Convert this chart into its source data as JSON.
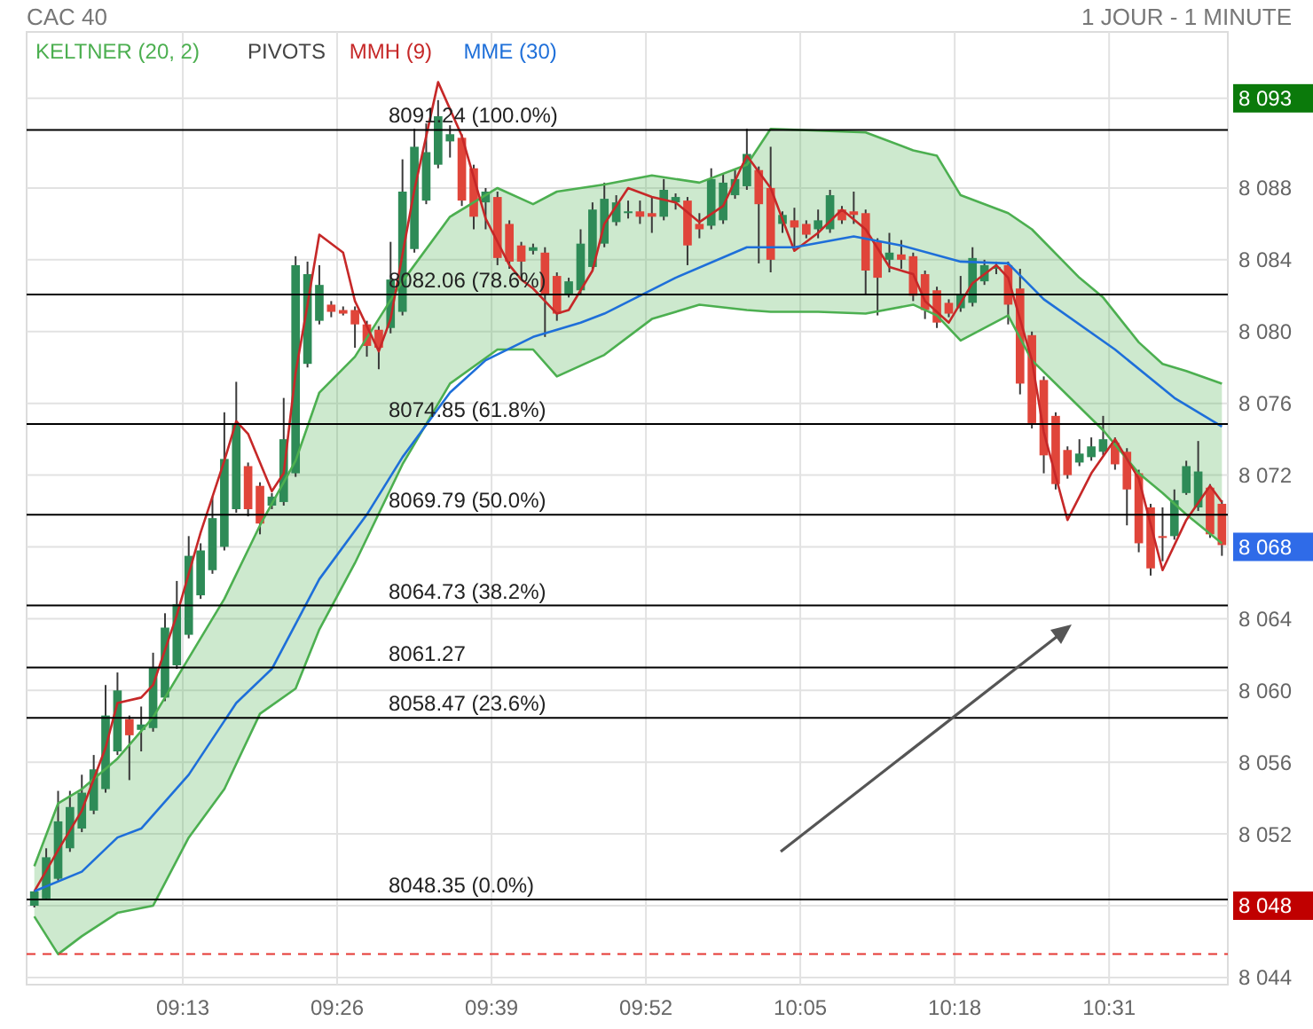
{
  "chart_data": {
    "type": "candlestick",
    "title": "CAC 40",
    "subtitle": "1 JOUR - 1 MINUTE",
    "xlim": [
      8.9975,
      10.6833
    ],
    "ylim": [
      8043.6,
      8096.7
    ],
    "xticks": [
      {
        "value": 9.2167,
        "label": "09:13"
      },
      {
        "value": 9.4333,
        "label": "09:26"
      },
      {
        "value": 9.65,
        "label": "09:39"
      },
      {
        "value": 9.8667,
        "label": "09:52"
      },
      {
        "value": 10.0833,
        "label": "10:05"
      },
      {
        "value": 10.3,
        "label": "10:18"
      },
      {
        "value": 10.5167,
        "label": "10:31"
      }
    ],
    "yticks": [
      {
        "value": 8044,
        "label": "8 044"
      },
      {
        "value": 8048,
        "label": "8 048"
      },
      {
        "value": 8052,
        "label": "8 052"
      },
      {
        "value": 8056,
        "label": "8 056"
      },
      {
        "value": 8060,
        "label": "8 060"
      },
      {
        "value": 8064,
        "label": "8 064"
      },
      {
        "value": 8068,
        "label": "8 068"
      },
      {
        "value": 8072,
        "label": "8 072"
      },
      {
        "value": 8076,
        "label": "8 076"
      },
      {
        "value": 8080,
        "label": "8 080"
      },
      {
        "value": 8084,
        "label": "8 084"
      },
      {
        "value": 8088,
        "label": "8 088"
      },
      {
        "value": 8093,
        "label": "8 093"
      }
    ],
    "grid": true,
    "legend": "top left",
    "series": [
      {
        "type": "line",
        "name": "KELTNER (20, 2)",
        "color": "#4caf50",
        "values": [
          8050.2,
          8053.7,
          8054.5,
          8056.2,
          8058.5,
          8061.8,
          8065.1,
          8069.2,
          8072.8,
          8076.6,
          8078.6,
          8082.8,
          8086.4,
          8088.0,
          8087.1,
          8087.8,
          8088.2,
          8088.7,
          8088.3,
          8089.3,
          8091.3,
          8091.2,
          8091.1,
          8090.1,
          8089.8,
          8087.6,
          8086.6,
          8085.7,
          8083.0,
          8081.9,
          8079.4,
          8078.2,
          8077.8,
          8077.1
        ],
        "x": [
          9.0083,
          9.0417,
          9.075,
          9.125,
          9.175,
          9.225,
          9.275,
          9.325,
          9.375,
          9.4083,
          9.4583,
          9.525,
          9.5917,
          9.6583,
          9.7083,
          9.7417,
          9.8083,
          9.875,
          9.9417,
          10.0083,
          10.0417,
          10.1083,
          10.175,
          10.2417,
          10.275,
          10.3083,
          10.375,
          10.4083,
          10.475,
          10.5083,
          10.5583,
          10.5917,
          10.625,
          10.675
        ],
        "upper": [
          8050.2,
          8053.7,
          8054.5,
          8056.2,
          8058.5,
          8061.8,
          8065.1,
          8069.2,
          8072.8,
          8076.6,
          8078.6,
          8082.8,
          8086.4,
          8088.0,
          8087.1,
          8087.8,
          8088.2,
          8088.7,
          8088.3,
          8089.3,
          8091.3,
          8091.2,
          8091.1,
          8090.1,
          8089.8,
          8087.6,
          8086.6,
          8085.7,
          8083.0,
          8081.9,
          8079.4,
          8078.2,
          8077.8,
          8077.1
        ],
        "lower": [
          8047.4,
          8045.3,
          8046.3,
          8047.6,
          8048.0,
          8051.8,
          8054.5,
          8058.7,
          8060.1,
          8063.4,
          8067.1,
          8072.6,
          8077.1,
          8079.0,
          8079.0,
          8077.5,
          8078.7,
          8080.7,
          8081.5,
          8081.2,
          8081.1,
          8081.1,
          8081.0,
          8081.5,
          8080.9,
          8079.5,
          8080.9,
          8078.4,
          8075.8,
          8074.5,
          8072.1,
          8071.0,
          8069.8,
          8068.2
        ]
      },
      {
        "type": "line",
        "color": "#4caf50",
        "x": [
          9.0083,
          9.0417,
          9.075,
          9.125,
          9.175,
          9.225,
          9.275,
          9.325,
          9.375,
          9.4083,
          9.4583,
          9.525,
          9.5917,
          9.6583,
          9.7083,
          9.7417,
          9.8083,
          9.875,
          9.9417,
          10.0083,
          10.0417,
          10.1083,
          10.175,
          10.2417,
          10.275,
          10.3083,
          10.375,
          10.4083,
          10.475,
          10.5083,
          10.5583,
          10.5917,
          10.625,
          10.675
        ],
        "values": [
          8047.4,
          8045.3,
          8046.3,
          8047.6,
          8048.0,
          8051.8,
          8054.5,
          8058.7,
          8060.1,
          8063.4,
          8067.1,
          8072.6,
          8077.1,
          8079.0,
          8079.0,
          8077.5,
          8078.7,
          8080.7,
          8081.5,
          8081.2,
          8081.1,
          8081.1,
          8081.0,
          8081.5,
          8080.9,
          8079.5,
          8080.9,
          8078.4,
          8075.8,
          8074.5,
          8072.1,
          8071.0,
          8069.8,
          8068.2
        ]
      },
      {
        "type": "line",
        "name": "MMH (9)",
        "color": "#c62828",
        "x": [
          9.0083,
          9.0417,
          9.075,
          9.1083,
          9.125,
          9.1583,
          9.175,
          9.2083,
          9.2417,
          9.275,
          9.2917,
          9.3083,
          9.3417,
          9.3583,
          9.375,
          9.3917,
          9.4083,
          9.4417,
          9.4583,
          9.4917,
          9.5083,
          9.5417,
          9.575,
          9.6083,
          9.6417,
          9.675,
          9.6917,
          9.7083,
          9.7417,
          9.7583,
          9.7917,
          9.8083,
          9.8417,
          9.875,
          9.9083,
          9.9417,
          9.975,
          10.0083,
          10.0417,
          10.075,
          10.1083,
          10.1417,
          10.175,
          10.2083,
          10.2417,
          10.2583,
          10.2917,
          10.325,
          10.3583,
          10.375,
          10.4083,
          10.425,
          10.4583,
          10.4917,
          10.525,
          10.5583,
          10.5917,
          10.625,
          10.6583,
          10.675
        ],
        "values": [
          8048.8,
          8051.1,
          8053.3,
          8056.8,
          8059.3,
          8059.6,
          8060.3,
          8064.2,
          8068.8,
          8072.8,
          8075.0,
          8074.3,
          8071.1,
          8072.1,
          8077.7,
          8081.5,
          8085.4,
          8084.4,
          8081.7,
          8078.9,
          8080.7,
          8087.9,
          8093.9,
          8090.9,
          8086.3,
          8083.7,
          8082.9,
          8082.4,
          8081.0,
          8081.2,
          8083.4,
          8086.0,
          8088.0,
          8087.5,
          8087.2,
          8086.1,
          8087.0,
          8089.8,
          8088.0,
          8084.5,
          8085.5,
          8086.8,
          8085.7,
          8083.6,
          8083.2,
          8081.7,
          8080.5,
          8082.7,
          8083.7,
          8083.0,
          8078.4,
          8074.4,
          8069.5,
          8072.1,
          8074.0,
          8071.8,
          8066.7,
          8069.5,
          8071.4,
          8070.5
        ]
      },
      {
        "type": "line",
        "name": "MME (30)",
        "color": "#1e6fd9",
        "x": [
          9.0083,
          9.075,
          9.125,
          9.1583,
          9.225,
          9.2917,
          9.3417,
          9.4083,
          9.475,
          9.525,
          9.5583,
          9.5917,
          9.6417,
          9.7083,
          9.775,
          9.8083,
          9.9083,
          10.0083,
          10.075,
          10.1583,
          10.225,
          10.3083,
          10.375,
          10.425,
          10.525,
          10.6083,
          10.675
        ],
        "values": [
          8048.8,
          8049.9,
          8051.8,
          8052.3,
          8055.3,
          8059.3,
          8061.2,
          8066.2,
          8069.8,
          8073.0,
          8074.8,
          8076.6,
          8078.4,
          8079.7,
          8080.5,
          8081.0,
          8083.0,
          8084.7,
          8084.7,
          8085.3,
          8084.8,
          8083.9,
          8083.8,
          8081.8,
          8079.0,
          8076.3,
          8074.7
        ]
      },
      {
        "x": [
          9.0083,
          9.025,
          9.0417,
          9.0583,
          9.075,
          9.0917,
          9.1083,
          9.125,
          9.1417,
          9.1583,
          9.175,
          9.1917,
          9.2083,
          9.225,
          9.2417,
          9.2583,
          9.275,
          9.2917,
          9.3083,
          9.325,
          9.3417,
          9.3583,
          9.375,
          9.3917,
          9.4083,
          9.425,
          9.4417,
          9.4583,
          9.475,
          9.4917,
          9.5083,
          9.525,
          9.5417,
          9.5583,
          9.575,
          9.5917,
          9.6083,
          9.625,
          9.6417,
          9.6583,
          9.675,
          9.6917,
          9.7083,
          9.725,
          9.7417,
          9.7583,
          9.775,
          9.7917,
          9.8083,
          9.825,
          9.8417,
          9.8583,
          9.875,
          9.8917,
          9.9083,
          9.925,
          9.9417,
          9.9583,
          9.975,
          9.9917,
          10.0083,
          10.025,
          10.0417,
          10.0583,
          10.075,
          10.0917,
          10.1083,
          10.125,
          10.1417,
          10.1583,
          10.175,
          10.1917,
          10.2083,
          10.225,
          10.2417,
          10.2583,
          10.275,
          10.2917,
          10.3083,
          10.325,
          10.3417,
          10.3583,
          10.375,
          10.3917,
          10.4083,
          10.425,
          10.4417,
          10.4583,
          10.475,
          10.4917,
          10.5083,
          10.525,
          10.5417,
          10.5583,
          10.575,
          10.5917,
          10.6083,
          10.625,
          10.6417,
          10.6583,
          10.675
        ],
        "ohlc": [
          [
            8048.0,
            8048.8,
            8047.9,
            8048.8
          ],
          [
            8048.4,
            8051.2,
            8048.3,
            8050.7
          ],
          [
            8049.5,
            8054.4,
            8049.4,
            8052.7
          ],
          [
            8051.2,
            8054.4,
            8051.0,
            8053.5
          ],
          [
            8052.3,
            8055.3,
            8052.1,
            8054.3
          ],
          [
            8053.3,
            8056.4,
            8053.1,
            8055.6
          ],
          [
            8054.5,
            8060.3,
            8054.3,
            8058.6
          ],
          [
            8056.6,
            8061.0,
            8056.4,
            8060.0
          ],
          [
            8058.4,
            8058.6,
            8055.0,
            8057.5
          ],
          [
            8057.8,
            8059.1,
            8056.6,
            8058.1
          ],
          [
            8057.9,
            8062.1,
            8057.7,
            8061.3
          ],
          [
            8059.6,
            8064.3,
            8059.4,
            8063.5
          ],
          [
            8061.4,
            8066.1,
            8061.2,
            8064.8
          ],
          [
            8063.1,
            8068.6,
            8062.9,
            8067.5
          ],
          [
            8065.3,
            8068.2,
            8065.1,
            8067.8
          ],
          [
            8066.7,
            8070.8,
            8066.5,
            8069.6
          ],
          [
            8068.0,
            8075.5,
            8067.8,
            8072.9
          ],
          [
            8070.1,
            8077.2,
            8069.9,
            8074.8
          ],
          [
            8072.5,
            8072.7,
            8069.7,
            8070.1
          ],
          [
            8071.4,
            8071.6,
            8068.7,
            8069.3
          ],
          [
            8070.3,
            8071.0,
            8070.1,
            8070.8
          ],
          [
            8070.5,
            8076.3,
            8070.3,
            8074.0
          ],
          [
            8072.1,
            8084.2,
            8071.9,
            8083.7
          ],
          [
            8078.2,
            8083.9,
            8078.0,
            8083.2
          ],
          [
            8080.6,
            8083.7,
            8080.4,
            8082.6
          ],
          [
            8081.5,
            8081.7,
            8080.8,
            8081.1
          ],
          [
            8081.2,
            8081.4,
            8080.9,
            8081.0
          ],
          [
            8081.2,
            8081.4,
            8079.1,
            8080.4
          ],
          [
            8080.4,
            8080.6,
            8078.6,
            8079.2
          ],
          [
            8080.1,
            8080.3,
            8077.9,
            8079.1
          ],
          [
            8080.2,
            8085.0,
            8079.9,
            8082.9
          ],
          [
            8081.1,
            8089.6,
            8080.9,
            8087.8
          ],
          [
            8084.6,
            8091.3,
            8084.4,
            8090.3
          ],
          [
            8087.3,
            8091.6,
            8087.1,
            8090.0
          ],
          [
            8089.3,
            8092.9,
            8089.1,
            8092.0
          ],
          [
            8090.6,
            8091.5,
            8089.7,
            8091.0
          ],
          [
            8090.8,
            8091.0,
            8087.0,
            8087.3
          ],
          [
            8089.1,
            8089.3,
            8085.7,
            8086.4
          ],
          [
            8087.2,
            8088.0,
            8085.7,
            8087.8
          ],
          [
            8087.5,
            8087.8,
            8083.7,
            8084.1
          ],
          [
            8086.0,
            8086.2,
            8083.5,
            8083.9
          ],
          [
            8084.8,
            8085.0,
            8083.0,
            8083.9
          ],
          [
            8084.5,
            8084.9,
            8084.3,
            8084.7
          ],
          [
            8084.4,
            8084.7,
            8079.7,
            8082.1
          ],
          [
            8083.1,
            8083.3,
            8080.6,
            8081.0
          ],
          [
            8082.1,
            8083.0,
            8081.9,
            8082.8
          ],
          [
            8082.3,
            8085.7,
            8082.1,
            8084.9
          ],
          [
            8083.6,
            8087.2,
            8083.4,
            8086.8
          ],
          [
            8084.9,
            8088.3,
            8084.7,
            8087.4
          ],
          [
            8086.1,
            8087.6,
            8085.9,
            8087.2
          ],
          [
            8086.6,
            8087.3,
            8086.3,
            8086.7
          ],
          [
            8086.7,
            8087.3,
            8086.0,
            8086.4
          ],
          [
            8086.6,
            8087.5,
            8085.5,
            8086.4
          ],
          [
            8086.4,
            8088.5,
            8086.2,
            8087.9
          ],
          [
            8087.2,
            8087.7,
            8086.8,
            8087.5
          ],
          [
            8087.3,
            8087.5,
            8083.7,
            8084.8
          ],
          [
            8086.0,
            8086.6,
            8085.2,
            8085.7
          ],
          [
            8085.9,
            8089.1,
            8085.7,
            8088.5
          ],
          [
            8086.2,
            8088.8,
            8086.0,
            8088.3
          ],
          [
            8087.6,
            8089.0,
            8087.4,
            8088.5
          ],
          [
            8088.1,
            8091.3,
            8087.9,
            8089.9
          ],
          [
            8089.0,
            8089.2,
            8083.8,
            8087.1
          ],
          [
            8088.0,
            8090.3,
            8083.3,
            8084.0
          ],
          [
            8086.0,
            8086.7,
            8085.5,
            8086.5
          ],
          [
            8086.2,
            8086.9,
            8084.5,
            8085.8
          ],
          [
            8086.0,
            8086.2,
            8085.2,
            8085.4
          ],
          [
            8085.7,
            8086.8,
            8085.2,
            8086.2
          ],
          [
            8085.7,
            8087.9,
            8085.5,
            8087.6
          ],
          [
            8086.8,
            8087.0,
            8086.0,
            8086.2
          ],
          [
            8086.7,
            8087.8,
            8086.0,
            8086.5
          ],
          [
            8086.6,
            8086.8,
            8082.1,
            8083.4
          ],
          [
            8085.0,
            8085.2,
            8080.9,
            8083.0
          ],
          [
            8084.0,
            8085.5,
            8083.3,
            8084.4
          ],
          [
            8084.3,
            8085.1,
            8083.5,
            8084.0
          ],
          [
            8084.2,
            8084.4,
            8081.7,
            8082.0
          ],
          [
            8083.2,
            8083.4,
            8080.7,
            8081.2
          ],
          [
            8082.3,
            8082.5,
            8080.2,
            8080.5
          ],
          [
            8081.6,
            8081.8,
            8080.8,
            8081.0
          ],
          [
            8081.3,
            8083.1,
            8081.1,
            8082.1
          ],
          [
            8081.6,
            8084.7,
            8081.4,
            8084.1
          ],
          [
            8082.8,
            8084.0,
            8082.6,
            8083.7
          ],
          [
            8083.5,
            8083.9,
            8083.2,
            8083.6
          ],
          [
            8083.7,
            8083.9,
            8080.4,
            8081.5
          ],
          [
            8082.4,
            8083.5,
            8076.5,
            8077.1
          ],
          [
            8079.8,
            8080.0,
            8074.6,
            8074.9
          ],
          [
            8077.3,
            8077.5,
            8072.1,
            8073.1
          ],
          [
            8075.3,
            8075.5,
            8071.2,
            8071.5
          ],
          [
            8073.4,
            8073.6,
            8071.8,
            8072.0
          ],
          [
            8072.7,
            8074.0,
            8072.5,
            8073.2
          ],
          [
            8073.0,
            8074.1,
            8072.8,
            8073.6
          ],
          [
            8073.3,
            8075.3,
            8073.1,
            8074.0
          ],
          [
            8073.8,
            8074.1,
            8072.3,
            8072.6
          ],
          [
            8073.3,
            8073.5,
            8069.2,
            8071.2
          ],
          [
            8072.1,
            8072.3,
            8067.7,
            8068.2
          ],
          [
            8070.2,
            8070.4,
            8066.4,
            8066.8
          ],
          [
            8068.6,
            8070.2,
            8067.2,
            8068.5
          ],
          [
            8068.6,
            8071.2,
            8068.4,
            8070.6
          ],
          [
            8071.0,
            8072.8,
            8070.9,
            8072.5
          ],
          [
            8070.2,
            8073.9,
            8070.0,
            8072.2
          ],
          [
            8071.3,
            8071.5,
            8068.5,
            8068.7
          ],
          [
            8070.4,
            8070.6,
            8067.5,
            8068.1
          ]
        ],
        "colors": [
          "#2e8b57",
          "#2e8b57",
          "#2e8b57",
          "#2e8b57",
          "#2e8b57",
          "#2e8b57",
          "#2e8b57",
          "#2e8b57",
          "#e0453a",
          "#2e8b57",
          "#2e8b57",
          "#2e8b57",
          "#2e8b57",
          "#2e8b57",
          "#2e8b57",
          "#2e8b57",
          "#2e8b57",
          "#2e8b57",
          "#e0453a",
          "#e0453a",
          "#2e8b57",
          "#2e8b57",
          "#2e8b57",
          "#2e8b57",
          "#2e8b57",
          "#e0453a",
          "#e0453a",
          "#e0453a",
          "#e0453a",
          "#e0453a",
          "#2e8b57",
          "#2e8b57",
          "#2e8b57",
          "#2e8b57",
          "#2e8b57",
          "#2e8b57",
          "#e0453a",
          "#e0453a",
          "#2e8b57",
          "#e0453a",
          "#e0453a",
          "#e0453a",
          "#2e8b57",
          "#e0453a",
          "#e0453a",
          "#2e8b57",
          "#2e8b57",
          "#2e8b57",
          "#2e8b57",
          "#2e8b57",
          "#2e8b57",
          "#e0453a",
          "#e0453a",
          "#2e8b57",
          "#2e8b57",
          "#e0453a",
          "#e0453a",
          "#2e8b57",
          "#2e8b57",
          "#2e8b57",
          "#2e8b57",
          "#e0453a",
          "#e0453a",
          "#2e8b57",
          "#e0453a",
          "#e0453a",
          "#2e8b57",
          "#2e8b57",
          "#e0453a",
          "#e0453a",
          "#e0453a",
          "#e0453a",
          "#2e8b57",
          "#e0453a",
          "#e0453a",
          "#e0453a",
          "#e0453a",
          "#e0453a",
          "#2e8b57",
          "#2e8b57",
          "#2e8b57",
          "#2e8b57",
          "#e0453a",
          "#e0453a",
          "#e0453a",
          "#e0453a",
          "#e0453a",
          "#e0453a",
          "#2e8b57",
          "#2e8b57",
          "#2e8b57",
          "#e0453a",
          "#e0453a",
          "#e0453a",
          "#e0453a",
          "#e0453a",
          "#2e8b57",
          "#2e8b57",
          "#2e8b57",
          "#e0453a",
          "#e0453a"
        ]
      }
    ],
    "ref_lines": [
      {
        "axis": "y",
        "value": 8091.24,
        "label": "8091.24  (100.0%)",
        "color": "#000000"
      },
      {
        "axis": "y",
        "value": 8082.06,
        "label": "8082.06  (78.6%)",
        "color": "#000000"
      },
      {
        "axis": "y",
        "value": 8074.85,
        "label": "8074.85  (61.8%)",
        "color": "#000000"
      },
      {
        "axis": "y",
        "value": 8069.79,
        "label": "8069.79  (50.0%)",
        "color": "#000000"
      },
      {
        "axis": "y",
        "value": 8064.73,
        "label": "8064.73  (38.2%)",
        "color": "#000000"
      },
      {
        "axis": "y",
        "value": 8061.27,
        "label": "8061.27",
        "color": "#000000"
      },
      {
        "axis": "y",
        "value": 8058.47,
        "label": "8058.47  (23.6%)",
        "color": "#000000"
      },
      {
        "axis": "y",
        "value": 8048.35,
        "label": "8048.35  (0.0%)",
        "color": "#000000"
      },
      {
        "axis": "y",
        "value": 8045.3,
        "label": null,
        "color": "#e53935",
        "line_style": "dashed"
      }
    ],
    "annotations": [
      "PIVOTS"
    ]
  }
}
